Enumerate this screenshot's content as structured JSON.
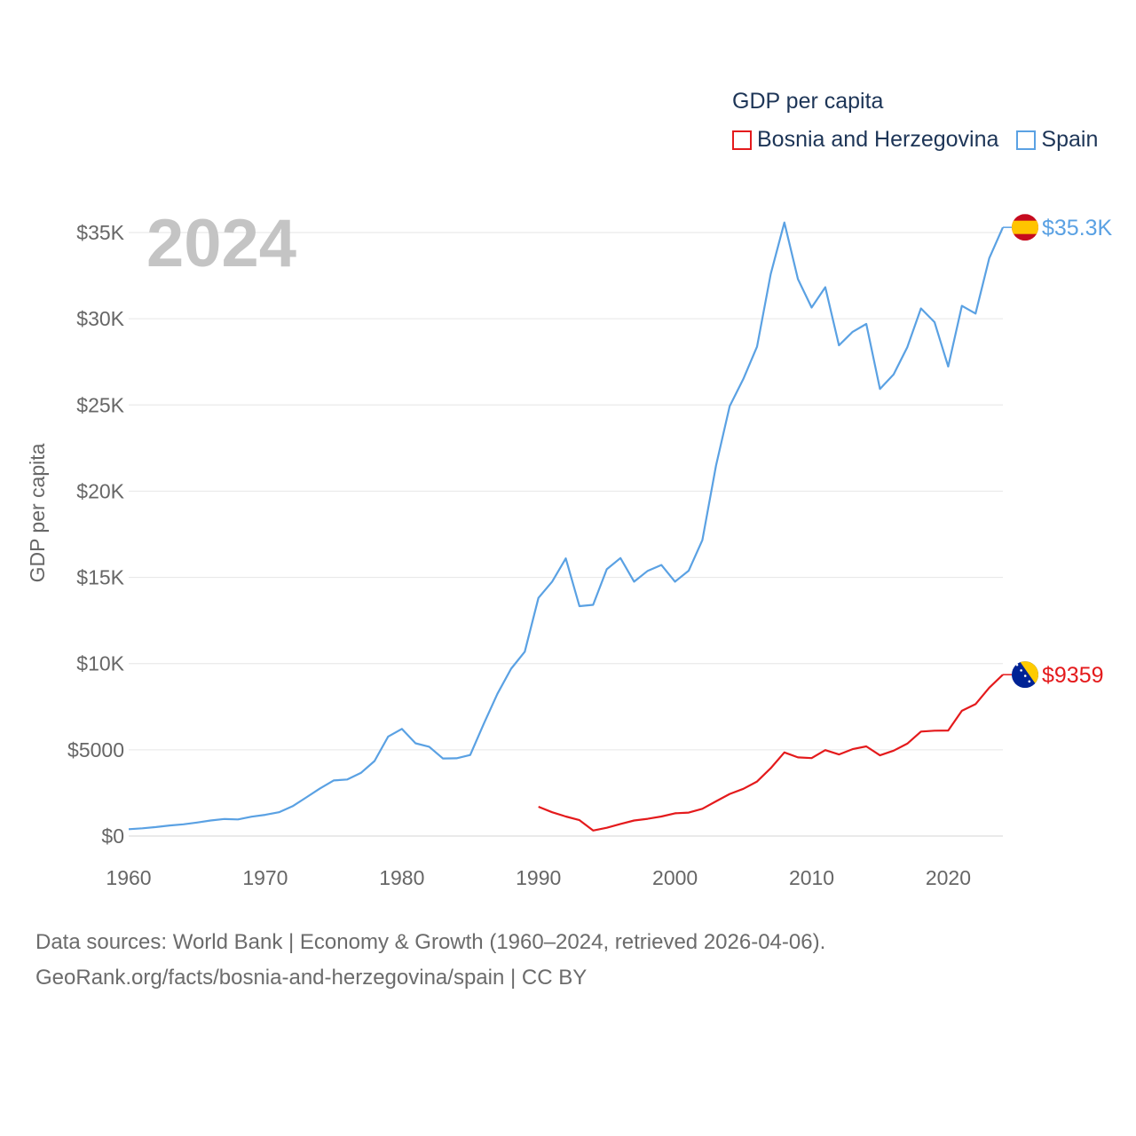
{
  "legend": {
    "title": "GDP per capita",
    "items": [
      {
        "label": "Bosnia and Herzegovina",
        "color": "#e41a1c"
      },
      {
        "label": "Spain",
        "color": "#5aa1e3"
      }
    ]
  },
  "year_label": "2024",
  "source": {
    "line1": "Data sources: World Bank | Economy & Growth (1960–2024, retrieved 2026-04-06).",
    "line2": "GeoRank.org/facts/bosnia-and-herzegovina/spain | CC BY"
  },
  "chart_data": {
    "type": "line",
    "title": "GDP per capita",
    "xlabel": "",
    "ylabel": "GDP per capita",
    "xlim": [
      1960,
      2024
    ],
    "ylim": [
      0,
      35000
    ],
    "x_ticks": [
      1960,
      1970,
      1980,
      1990,
      2000,
      2010,
      2020
    ],
    "y_ticks": [
      {
        "value": 0,
        "label": "$0"
      },
      {
        "value": 5000,
        "label": "$5000"
      },
      {
        "value": 10000,
        "label": "$10K"
      },
      {
        "value": 15000,
        "label": "$15K"
      },
      {
        "value": 20000,
        "label": "$20K"
      },
      {
        "value": 25000,
        "label": "$25K"
      },
      {
        "value": 30000,
        "label": "$30K"
      },
      {
        "value": 35000,
        "label": "$35K"
      }
    ],
    "grid": true,
    "series": [
      {
        "name": "Spain",
        "color": "#5aa1e3",
        "end_label": "$35.3K",
        "flag": "spain-flag-icon",
        "x": [
          1960,
          1961,
          1962,
          1963,
          1964,
          1965,
          1966,
          1967,
          1968,
          1969,
          1970,
          1971,
          1972,
          1973,
          1974,
          1975,
          1976,
          1977,
          1978,
          1979,
          1980,
          1981,
          1982,
          1983,
          1984,
          1985,
          1986,
          1987,
          1988,
          1989,
          1990,
          1991,
          1992,
          1993,
          1994,
          1995,
          1996,
          1997,
          1998,
          1999,
          2000,
          2001,
          2002,
          2003,
          2004,
          2005,
          2006,
          2007,
          2008,
          2009,
          2010,
          2011,
          2012,
          2013,
          2014,
          2015,
          2016,
          2017,
          2018,
          2019,
          2020,
          2021,
          2022,
          2023,
          2024
        ],
        "values": [
          396,
          450,
          520,
          610,
          680,
          780,
          900,
          990,
          960,
          1120,
          1230,
          1380,
          1730,
          2240,
          2760,
          3220,
          3280,
          3660,
          4350,
          5770,
          6210,
          5380,
          5180,
          4500,
          4510,
          4700,
          6520,
          8250,
          9700,
          10690,
          13810,
          14750,
          16100,
          13330,
          13410,
          15470,
          16120,
          14750,
          15380,
          15720,
          14750,
          15390,
          17160,
          21490,
          24930,
          26510,
          28380,
          32590,
          35580,
          32300,
          30650,
          31830,
          28460,
          29240,
          29700,
          25930,
          26770,
          28350,
          30600,
          29800,
          27230,
          30750,
          30300,
          33500,
          35300
        ]
      },
      {
        "name": "Bosnia and Herzegovina",
        "color": "#e41a1c",
        "end_label": "$9359",
        "flag": "bosnia-flag-icon",
        "x": [
          1990,
          1991,
          1992,
          1993,
          1994,
          1995,
          1996,
          1997,
          1998,
          1999,
          2000,
          2001,
          2002,
          2003,
          2004,
          2005,
          2006,
          2007,
          2008,
          2009,
          2010,
          2011,
          2012,
          2013,
          2014,
          2015,
          2016,
          2017,
          2018,
          2019,
          2020,
          2021,
          2022,
          2023,
          2024
        ],
        "values": [
          1700,
          1380,
          1130,
          920,
          320,
          480,
          700,
          900,
          1000,
          1130,
          1320,
          1360,
          1580,
          2010,
          2440,
          2740,
          3160,
          3930,
          4850,
          4560,
          4520,
          4980,
          4730,
          5040,
          5200,
          4680,
          4950,
          5360,
          6060,
          6110,
          6120,
          7260,
          7650,
          8600,
          9359
        ]
      }
    ]
  }
}
